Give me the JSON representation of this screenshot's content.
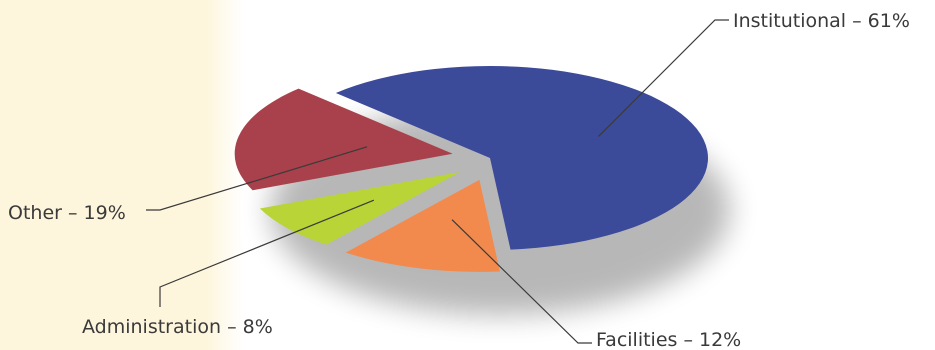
{
  "chart_data": {
    "type": "pie",
    "title": "",
    "slices": [
      {
        "label": "Institutional – 61%",
        "name": "Institutional",
        "value": 61,
        "color": "#3c4a9a",
        "exploded": false
      },
      {
        "label": "Facilities – 12%",
        "name": "Facilities",
        "value": 12,
        "color": "#f28a4e",
        "exploded": true
      },
      {
        "label": "Administration – 8%",
        "name": "Administration",
        "value": 8,
        "color": "#b9d436",
        "exploded": true
      },
      {
        "label": "Other – 19%",
        "name": "Other",
        "value": 19,
        "color": "#a8414b",
        "exploded": true
      }
    ],
    "legend": "none",
    "style": "3d-tilted-exploded",
    "unit": "%"
  },
  "colors": {
    "background_left": "#fdf6dc",
    "background_right": "#ffffff",
    "text": "#3a3a3a",
    "shadow": "#9a9a9a"
  }
}
